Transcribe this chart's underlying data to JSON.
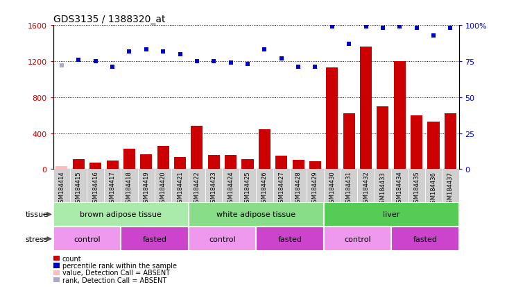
{
  "title": "GDS3135 / 1388320_at",
  "samples": [
    "GSM184414",
    "GSM184415",
    "GSM184416",
    "GSM184417",
    "GSM184418",
    "GSM184419",
    "GSM184420",
    "GSM184421",
    "GSM184422",
    "GSM184423",
    "GSM184424",
    "GSM184425",
    "GSM184426",
    "GSM184427",
    "GSM184428",
    "GSM184429",
    "GSM184430",
    "GSM184431",
    "GSM184432",
    "GSM184433",
    "GSM184434",
    "GSM184435",
    "GSM184436",
    "GSM184437"
  ],
  "count_values": [
    35,
    110,
    70,
    95,
    230,
    165,
    255,
    130,
    480,
    160,
    160,
    110,
    440,
    150,
    105,
    90,
    1130,
    620,
    1360,
    700,
    1200,
    600,
    525,
    620
  ],
  "percentile_values": [
    72,
    76,
    75,
    71,
    82,
    83,
    82,
    80,
    75,
    75,
    74,
    73,
    83,
    77,
    71,
    71,
    99,
    87,
    99,
    98,
    99,
    98,
    93,
    98
  ],
  "absent_mask": [
    true,
    false,
    false,
    false,
    false,
    false,
    false,
    false,
    false,
    false,
    false,
    false,
    false,
    false,
    false,
    false,
    false,
    false,
    false,
    false,
    false,
    false,
    false,
    false
  ],
  "bar_color_present": "#cc0000",
  "bar_color_absent": "#ffbbbb",
  "dot_color_present": "#0000cc",
  "dot_color_absent": "#aaaacc",
  "ylim_left": [
    0,
    1600
  ],
  "ylim_right": [
    0,
    100
  ],
  "yticks_left": [
    0,
    400,
    800,
    1200,
    1600
  ],
  "yticks_right": [
    0,
    25,
    50,
    75,
    100
  ],
  "tissue_groups": [
    {
      "label": "brown adipose tissue",
      "start": 0,
      "end": 7,
      "color": "#aaeaaa"
    },
    {
      "label": "white adipose tissue",
      "start": 8,
      "end": 15,
      "color": "#88dd88"
    },
    {
      "label": "liver",
      "start": 16,
      "end": 23,
      "color": "#55cc55"
    }
  ],
  "stress_groups": [
    {
      "label": "control",
      "start": 0,
      "end": 3,
      "color": "#ee99ee"
    },
    {
      "label": "fasted",
      "start": 4,
      "end": 7,
      "color": "#cc44cc"
    },
    {
      "label": "control",
      "start": 8,
      "end": 11,
      "color": "#ee99ee"
    },
    {
      "label": "fasted",
      "start": 12,
      "end": 15,
      "color": "#cc44cc"
    },
    {
      "label": "control",
      "start": 16,
      "end": 19,
      "color": "#ee99ee"
    },
    {
      "label": "fasted",
      "start": 20,
      "end": 23,
      "color": "#cc44cc"
    }
  ],
  "legend_items": [
    {
      "label": "count",
      "color": "#cc0000"
    },
    {
      "label": "percentile rank within the sample",
      "color": "#0000cc"
    },
    {
      "label": "value, Detection Call = ABSENT",
      "color": "#ffbbbb"
    },
    {
      "label": "rank, Detection Call = ABSENT",
      "color": "#aaaacc"
    }
  ],
  "xtick_bg_color": "#d0d0d0"
}
